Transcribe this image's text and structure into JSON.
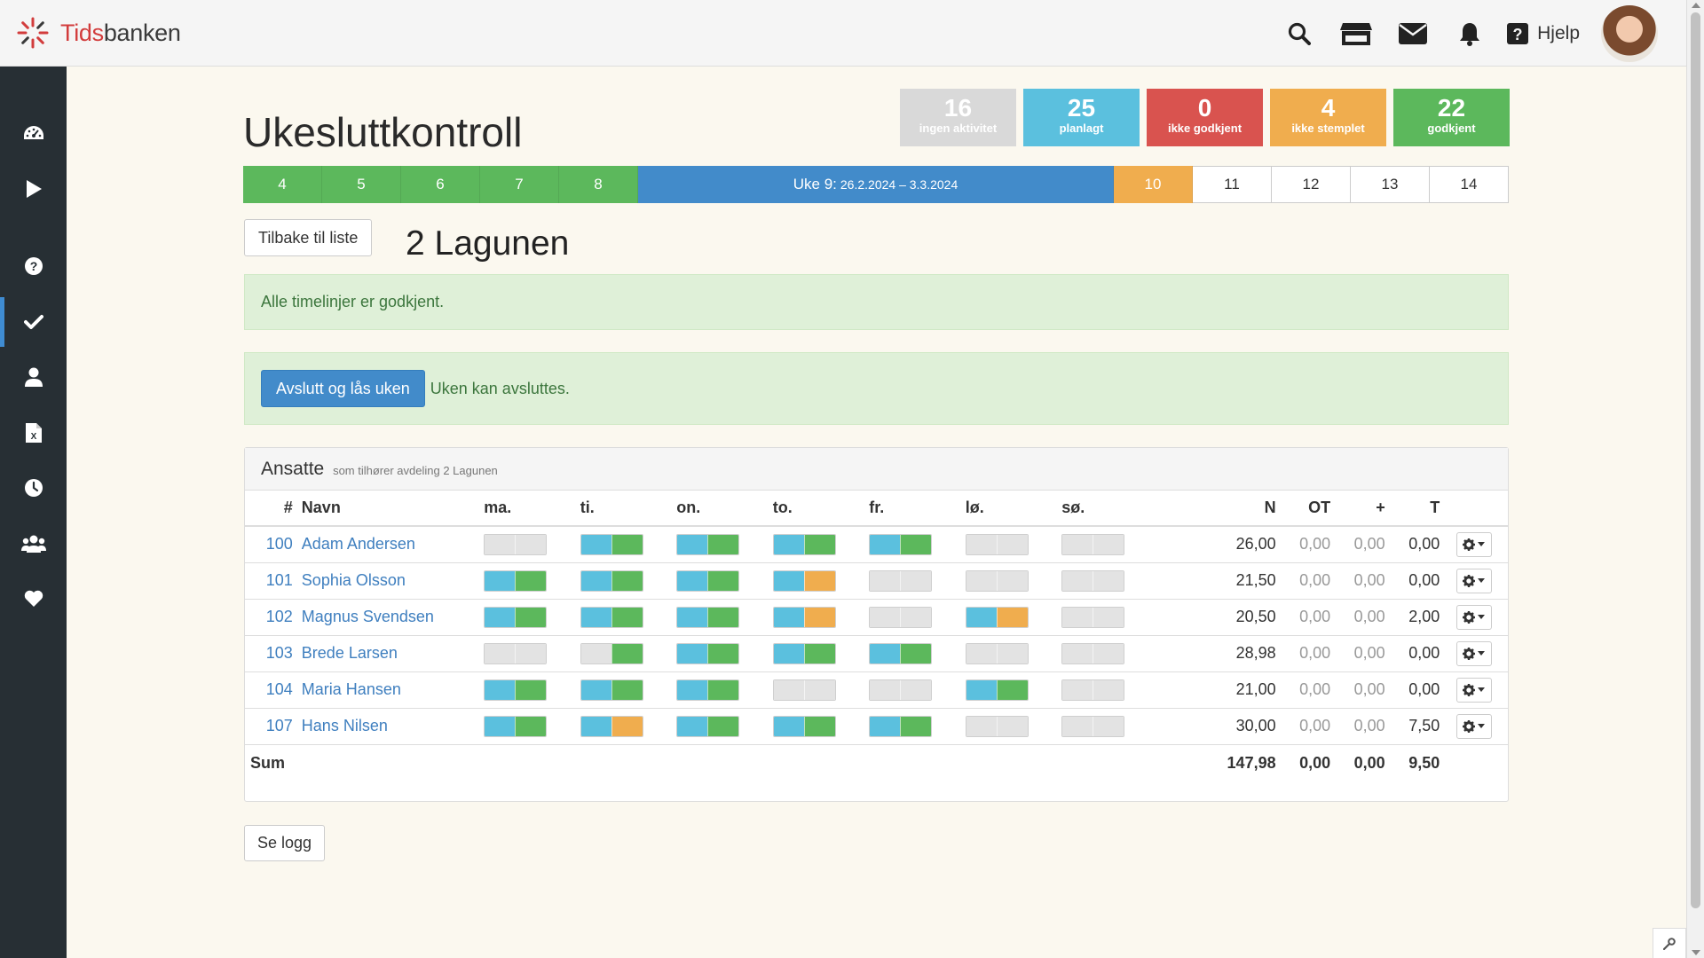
{
  "app": {
    "logo_part1": "Tids",
    "logo_part2": "banken",
    "help_label": "Hjelp"
  },
  "header_icons": [
    "search-icon",
    "store-icon",
    "mail-icon",
    "bell-icon",
    "question-square-icon"
  ],
  "sidebar_icons": [
    "dashboard-icon",
    "play-icon",
    "question-circle-icon",
    "check-icon",
    "user-icon",
    "excel-file-icon",
    "clock-icon",
    "users-icon",
    "heart-icon"
  ],
  "page": {
    "title": "Ukesluttkontroll",
    "department": "2 Lagunen",
    "back_button": "Tilbake til liste",
    "log_button": "Se logg"
  },
  "stats": [
    {
      "num": "16",
      "label": "ingen aktivitet",
      "color": "#d9d9d9"
    },
    {
      "num": "25",
      "label": "planlagt",
      "color": "#5bc0de"
    },
    {
      "num": "0",
      "label": "ikke godkjent",
      "color": "#d9534f"
    },
    {
      "num": "4",
      "label": "ikke stemplet",
      "color": "#f0ad4e"
    },
    {
      "num": "22",
      "label": "godkjent",
      "color": "#5cb85c"
    }
  ],
  "weeks": {
    "before": [
      "4",
      "5",
      "6",
      "7",
      "8"
    ],
    "current_label": "Uke 9:",
    "current_range": "26.2.2024 – 3.3.2024",
    "next_pending": "10",
    "after": [
      "11",
      "12",
      "13",
      "14"
    ]
  },
  "alerts": {
    "all_approved": "Alle timelinjer er godkjent.",
    "close_button": "Avslutt og lås uken",
    "can_close": "Uken kan avsluttes."
  },
  "panel": {
    "title": "Ansatte",
    "subtitle": "som tilhører avdeling 2 Lagunen"
  },
  "table": {
    "headers": {
      "num": "#",
      "name": "Navn",
      "days": [
        "ma.",
        "ti.",
        "on.",
        "to.",
        "fr.",
        "lø.",
        "sø."
      ],
      "N": "N",
      "OT": "OT",
      "plus": "+",
      "T": "T"
    },
    "rows": [
      {
        "num": "100",
        "name": "Adam Andersen",
        "days": [
          [
            "gray",
            "gray"
          ],
          [
            "blue",
            "green"
          ],
          [
            "blue",
            "green"
          ],
          [
            "blue",
            "green"
          ],
          [
            "blue",
            "green"
          ],
          [
            "gray",
            "gray"
          ],
          [
            "gray",
            "gray"
          ]
        ],
        "N": "26,00",
        "OT": "0,00",
        "plus": "0,00",
        "T": "0,00"
      },
      {
        "num": "101",
        "name": "Sophia Olsson",
        "days": [
          [
            "blue",
            "green"
          ],
          [
            "blue",
            "green"
          ],
          [
            "blue",
            "green"
          ],
          [
            "blue",
            "orange"
          ],
          [
            "gray",
            "gray"
          ],
          [
            "gray",
            "gray"
          ],
          [
            "gray",
            "gray"
          ]
        ],
        "N": "21,50",
        "OT": "0,00",
        "plus": "0,00",
        "T": "0,00"
      },
      {
        "num": "102",
        "name": "Magnus Svendsen",
        "days": [
          [
            "blue",
            "green"
          ],
          [
            "blue",
            "green"
          ],
          [
            "blue",
            "green"
          ],
          [
            "blue",
            "orange"
          ],
          [
            "gray",
            "gray"
          ],
          [
            "blue",
            "orange"
          ],
          [
            "gray",
            "gray"
          ]
        ],
        "N": "20,50",
        "OT": "0,00",
        "plus": "0,00",
        "T": "2,00"
      },
      {
        "num": "103",
        "name": "Brede Larsen",
        "days": [
          [
            "gray",
            "gray"
          ],
          [
            "gray",
            "green"
          ],
          [
            "blue",
            "green"
          ],
          [
            "blue",
            "green"
          ],
          [
            "blue",
            "green"
          ],
          [
            "gray",
            "gray"
          ],
          [
            "gray",
            "gray"
          ]
        ],
        "N": "28,98",
        "OT": "0,00",
        "plus": "0,00",
        "T": "0,00"
      },
      {
        "num": "104",
        "name": "Maria Hansen",
        "days": [
          [
            "blue",
            "green"
          ],
          [
            "blue",
            "green"
          ],
          [
            "blue",
            "green"
          ],
          [
            "gray",
            "gray"
          ],
          [
            "gray",
            "gray"
          ],
          [
            "blue",
            "green"
          ],
          [
            "gray",
            "gray"
          ]
        ],
        "N": "21,00",
        "OT": "0,00",
        "plus": "0,00",
        "T": "0,00"
      },
      {
        "num": "107",
        "name": "Hans Nilsen",
        "days": [
          [
            "blue",
            "green"
          ],
          [
            "blue",
            "orange"
          ],
          [
            "blue",
            "green"
          ],
          [
            "blue",
            "green"
          ],
          [
            "blue",
            "green"
          ],
          [
            "gray",
            "gray"
          ],
          [
            "gray",
            "gray"
          ]
        ],
        "N": "30,00",
        "OT": "0,00",
        "plus": "0,00",
        "T": "7,50"
      }
    ],
    "sum": {
      "label": "Sum",
      "N": "147,98",
      "OT": "0,00",
      "plus": "0,00",
      "T": "9,50"
    }
  }
}
